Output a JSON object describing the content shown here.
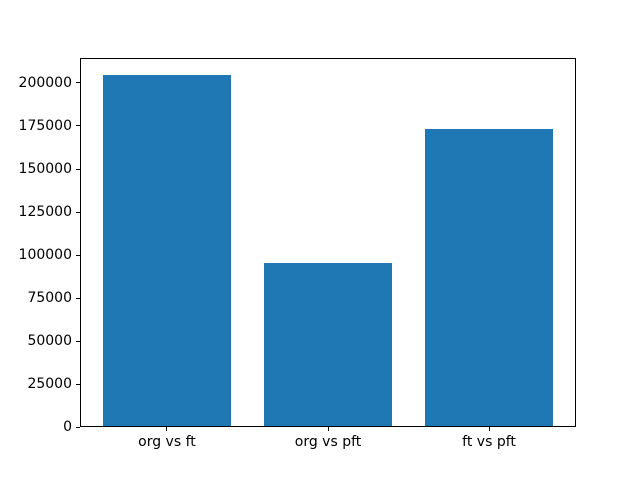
{
  "chart_data": {
    "type": "bar",
    "title": "",
    "xlabel": "",
    "ylabel": "",
    "categories": [
      "org vs ft",
      "org vs pft",
      "ft vs pft"
    ],
    "values": [
      204500,
      95200,
      173100
    ],
    "bar_color": "#1f77b4",
    "bar_width_units": 0.8,
    "xlim": [
      -0.54,
      2.54
    ],
    "ylim": [
      0,
      214725
    ],
    "yticks": [
      0,
      25000,
      50000,
      75000,
      100000,
      125000,
      150000,
      175000,
      200000
    ],
    "ytick_labels": [
      "0",
      "25000",
      "50000",
      "75000",
      "100000",
      "125000",
      "150000",
      "175000",
      "200000"
    ],
    "grid": false,
    "legend": false,
    "background_color": "#ffffff",
    "spine_color": "#000000",
    "tick_label_color": "#000000"
  }
}
